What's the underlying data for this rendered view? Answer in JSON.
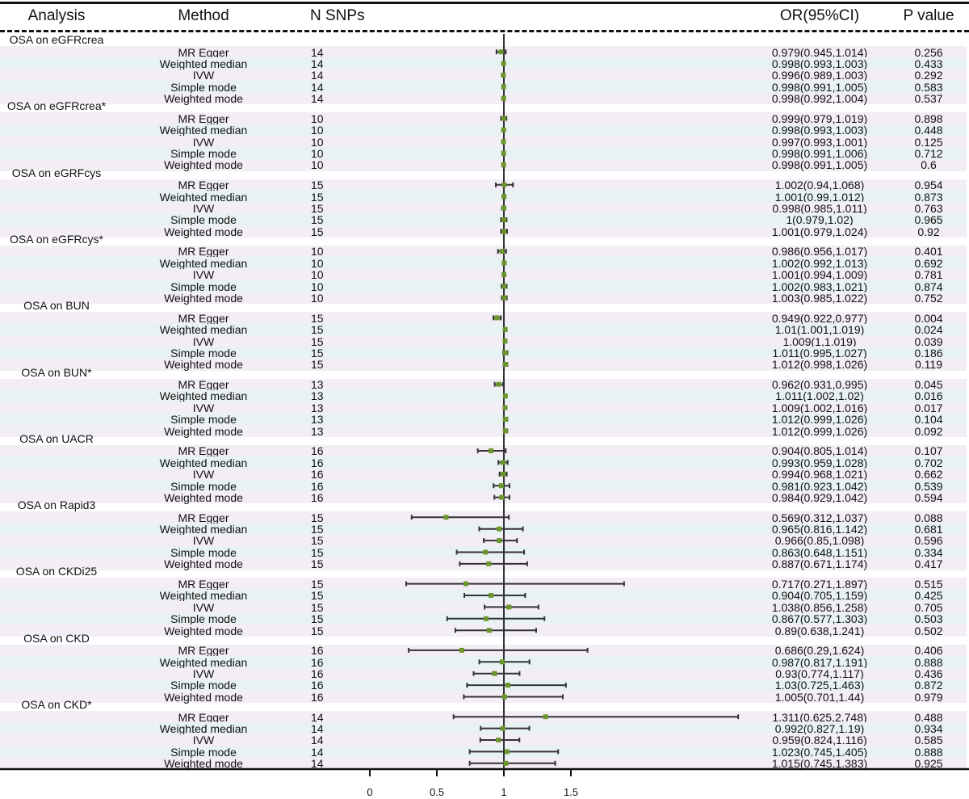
{
  "headers": {
    "analysis": "Analysis",
    "method": "Method",
    "nsnps": "N SNPs",
    "or": "OR(95%CI)",
    "p": "P value"
  },
  "colors": {
    "row_a": "#f3edf5",
    "row_b": "#e8f2f2",
    "point": "#6b962b",
    "line": "#333333"
  },
  "chart_data": {
    "type": "forest",
    "x_ticks": [
      "0",
      "0.5",
      "1",
      "1.5"
    ],
    "xlim": [
      0,
      2.75
    ],
    "reference_line": 1,
    "groups": [
      {
        "analysis": "OSA on eGFRcrea",
        "rows": [
          {
            "method": "MR Egger",
            "n": "14",
            "or": 0.979,
            "lo": 0.945,
            "hi": 1.014,
            "or_text": "0.979(0.945,1.014)",
            "p": "0.256"
          },
          {
            "method": "Weighted median",
            "n": "14",
            "or": 0.998,
            "lo": 0.993,
            "hi": 1.003,
            "or_text": "0.998(0.993,1.003)",
            "p": "0.433"
          },
          {
            "method": "IVW",
            "n": "14",
            "or": 0.996,
            "lo": 0.989,
            "hi": 1.003,
            "or_text": "0.996(0.989,1.003)",
            "p": "0.292"
          },
          {
            "method": "Simple mode",
            "n": "14",
            "or": 0.998,
            "lo": 0.991,
            "hi": 1.005,
            "or_text": "0.998(0.991,1.005)",
            "p": "0.583"
          },
          {
            "method": "Weighted mode",
            "n": "14",
            "or": 0.998,
            "lo": 0.992,
            "hi": 1.004,
            "or_text": "0.998(0.992,1.004)",
            "p": "0.537"
          }
        ]
      },
      {
        "analysis": "OSA on eGFRcrea*",
        "rows": [
          {
            "method": "MR Egger",
            "n": "10",
            "or": 0.999,
            "lo": 0.979,
            "hi": 1.019,
            "or_text": "0.999(0.979,1.019)",
            "p": "0.898"
          },
          {
            "method": "Weighted median",
            "n": "10",
            "or": 0.998,
            "lo": 0.993,
            "hi": 1.003,
            "or_text": "0.998(0.993,1.003)",
            "p": "0.448"
          },
          {
            "method": "IVW",
            "n": "10",
            "or": 0.997,
            "lo": 0.993,
            "hi": 1.001,
            "or_text": "0.997(0.993,1.001)",
            "p": "0.125"
          },
          {
            "method": "Simple mode",
            "n": "10",
            "or": 0.998,
            "lo": 0.991,
            "hi": 1.006,
            "or_text": "0.998(0.991,1.006)",
            "p": "0.712"
          },
          {
            "method": "Weighted mode",
            "n": "10",
            "or": 0.998,
            "lo": 0.991,
            "hi": 1.005,
            "or_text": "0.998(0.991,1.005)",
            "p": "0.6"
          }
        ]
      },
      {
        "analysis": "OSA on eGRFcys",
        "rows": [
          {
            "method": "MR Egger",
            "n": "15",
            "or": 1.002,
            "lo": 0.94,
            "hi": 1.068,
            "or_text": "1.002(0.94,1.068)",
            "p": "0.954"
          },
          {
            "method": "Weighted median",
            "n": "15",
            "or": 1.001,
            "lo": 0.99,
            "hi": 1.012,
            "or_text": "1.001(0.99,1.012)",
            "p": "0.873"
          },
          {
            "method": "IVW",
            "n": "15",
            "or": 0.998,
            "lo": 0.985,
            "hi": 1.011,
            "or_text": "0.998(0.985,1.011)",
            "p": "0.763"
          },
          {
            "method": "Simple mode",
            "n": "15",
            "or": 1,
            "lo": 0.979,
            "hi": 1.02,
            "or_text": "1(0.979,1.02)",
            "p": "0.965"
          },
          {
            "method": "Weighted mode",
            "n": "15",
            "or": 1.001,
            "lo": 0.979,
            "hi": 1.024,
            "or_text": "1.001(0.979,1.024)",
            "p": "0.92"
          }
        ]
      },
      {
        "analysis": "OSA on eGFRcys*",
        "rows": [
          {
            "method": "MR Egger",
            "n": "10",
            "or": 0.986,
            "lo": 0.956,
            "hi": 1.017,
            "or_text": "0.986(0.956,1.017)",
            "p": "0.401"
          },
          {
            "method": "Weighted median",
            "n": "10",
            "or": 1.002,
            "lo": 0.992,
            "hi": 1.013,
            "or_text": "1.002(0.992,1.013)",
            "p": "0.692"
          },
          {
            "method": "IVW",
            "n": "10",
            "or": 1.001,
            "lo": 0.994,
            "hi": 1.009,
            "or_text": "1.001(0.994,1.009)",
            "p": "0.781"
          },
          {
            "method": "Simple mode",
            "n": "10",
            "or": 1.002,
            "lo": 0.983,
            "hi": 1.021,
            "or_text": "1.002(0.983,1.021)",
            "p": "0.874"
          },
          {
            "method": "Weighted mode",
            "n": "10",
            "or": 1.003,
            "lo": 0.985,
            "hi": 1.022,
            "or_text": "1.003(0.985,1.022)",
            "p": "0.752"
          }
        ]
      },
      {
        "analysis": "OSA on BUN",
        "rows": [
          {
            "method": "MR Egger",
            "n": "15",
            "or": 0.949,
            "lo": 0.922,
            "hi": 0.977,
            "or_text": "0.949(0.922,0.977)",
            "p": "0.004"
          },
          {
            "method": "Weighted median",
            "n": "15",
            "or": 1.01,
            "lo": 1.001,
            "hi": 1.019,
            "or_text": "1.01(1.001,1.019)",
            "p": "0.024"
          },
          {
            "method": "IVW",
            "n": "15",
            "or": 1.009,
            "lo": 1,
            "hi": 1.019,
            "or_text": "1.009(1,1.019)",
            "p": "0.039"
          },
          {
            "method": "Simple mode",
            "n": "15",
            "or": 1.011,
            "lo": 0.995,
            "hi": 1.027,
            "or_text": "1.011(0.995,1.027)",
            "p": "0.186"
          },
          {
            "method": "Weighted mode",
            "n": "15",
            "or": 1.012,
            "lo": 0.998,
            "hi": 1.026,
            "or_text": "1.012(0.998,1.026)",
            "p": "0.119"
          }
        ]
      },
      {
        "analysis": "OSA on BUN*",
        "rows": [
          {
            "method": "MR Egger",
            "n": "13",
            "or": 0.962,
            "lo": 0.931,
            "hi": 0.995,
            "or_text": "0.962(0.931,0.995)",
            "p": "0.045"
          },
          {
            "method": "Weighted median",
            "n": "13",
            "or": 1.011,
            "lo": 1.002,
            "hi": 1.02,
            "or_text": "1.011(1.002,1.02)",
            "p": "0.016"
          },
          {
            "method": "IVW",
            "n": "13",
            "or": 1.009,
            "lo": 1.002,
            "hi": 1.016,
            "or_text": "1.009(1.002,1.016)",
            "p": "0.017"
          },
          {
            "method": "Simple mode",
            "n": "13",
            "or": 1.012,
            "lo": 0.999,
            "hi": 1.026,
            "or_text": "1.012(0.999,1.026)",
            "p": "0.104"
          },
          {
            "method": "Weighted mode",
            "n": "13",
            "or": 1.012,
            "lo": 0.999,
            "hi": 1.026,
            "or_text": "1.012(0.999,1.026)",
            "p": "0.092"
          }
        ]
      },
      {
        "analysis": "OSA on UACR",
        "rows": [
          {
            "method": "MR Egger",
            "n": "16",
            "or": 0.904,
            "lo": 0.805,
            "hi": 1.014,
            "or_text": "0.904(0.805,1.014)",
            "p": "0.107"
          },
          {
            "method": "Weighted median",
            "n": "16",
            "or": 0.993,
            "lo": 0.959,
            "hi": 1.028,
            "or_text": "0.993(0.959,1.028)",
            "p": "0.702"
          },
          {
            "method": "IVW",
            "n": "16",
            "or": 0.994,
            "lo": 0.968,
            "hi": 1.021,
            "or_text": "0.994(0.968,1.021)",
            "p": "0.662"
          },
          {
            "method": "Simple mode",
            "n": "16",
            "or": 0.981,
            "lo": 0.923,
            "hi": 1.042,
            "or_text": "0.981(0.923,1.042)",
            "p": "0.539"
          },
          {
            "method": "Weighted mode",
            "n": "16",
            "or": 0.984,
            "lo": 0.929,
            "hi": 1.042,
            "or_text": "0.984(0.929,1.042)",
            "p": "0.594"
          }
        ]
      },
      {
        "analysis": "OSA on Rapid3",
        "rows": [
          {
            "method": "MR Egger",
            "n": "15",
            "or": 0.569,
            "lo": 0.312,
            "hi": 1.037,
            "or_text": "0.569(0.312,1.037)",
            "p": "0.088"
          },
          {
            "method": "Weighted median",
            "n": "15",
            "or": 0.965,
            "lo": 0.816,
            "hi": 1.142,
            "or_text": "0.965(0.816,1.142)",
            "p": "0.681"
          },
          {
            "method": "IVW",
            "n": "15",
            "or": 0.966,
            "lo": 0.85,
            "hi": 1.098,
            "or_text": "0.966(0.85,1.098)",
            "p": "0.596"
          },
          {
            "method": "Simple mode",
            "n": "15",
            "or": 0.863,
            "lo": 0.648,
            "hi": 1.151,
            "or_text": "0.863(0.648,1.151)",
            "p": "0.334"
          },
          {
            "method": "Weighted mode",
            "n": "15",
            "or": 0.887,
            "lo": 0.671,
            "hi": 1.174,
            "or_text": "0.887(0.671,1.174)",
            "p": "0.417"
          }
        ]
      },
      {
        "analysis": "OSA on CKDi25",
        "rows": [
          {
            "method": "MR Egger",
            "n": "15",
            "or": 0.717,
            "lo": 0.271,
            "hi": 1.897,
            "or_text": "0.717(0.271,1.897)",
            "p": "0.515"
          },
          {
            "method": "Weighted median",
            "n": "15",
            "or": 0.904,
            "lo": 0.705,
            "hi": 1.159,
            "or_text": "0.904(0.705,1.159)",
            "p": "0.425"
          },
          {
            "method": "IVW",
            "n": "15",
            "or": 1.038,
            "lo": 0.856,
            "hi": 1.258,
            "or_text": "1.038(0.856,1.258)",
            "p": "0.705"
          },
          {
            "method": "Simple mode",
            "n": "15",
            "or": 0.867,
            "lo": 0.577,
            "hi": 1.303,
            "or_text": "0.867(0.577,1.303)",
            "p": "0.503"
          },
          {
            "method": "Weighted mode",
            "n": "15",
            "or": 0.89,
            "lo": 0.638,
            "hi": 1.241,
            "or_text": "0.89(0.638,1.241)",
            "p": "0.502"
          }
        ]
      },
      {
        "analysis": "OSA on CKD",
        "rows": [
          {
            "method": "MR Egger",
            "n": "16",
            "or": 0.686,
            "lo": 0.29,
            "hi": 1.624,
            "or_text": "0.686(0.29,1.624)",
            "p": "0.406"
          },
          {
            "method": "Weighted median",
            "n": "16",
            "or": 0.987,
            "lo": 0.817,
            "hi": 1.191,
            "or_text": "0.987(0.817,1.191)",
            "p": "0.888"
          },
          {
            "method": "IVW",
            "n": "16",
            "or": 0.93,
            "lo": 0.774,
            "hi": 1.117,
            "or_text": "0.93(0.774,1.117)",
            "p": "0.436"
          },
          {
            "method": "Simple mode",
            "n": "16",
            "or": 1.03,
            "lo": 0.725,
            "hi": 1.463,
            "or_text": "1.03(0.725,1.463)",
            "p": "0.872"
          },
          {
            "method": "Weighted mode",
            "n": "16",
            "or": 1.005,
            "lo": 0.701,
            "hi": 1.44,
            "or_text": "1.005(0.701,1.44)",
            "p": "0.979"
          }
        ]
      },
      {
        "analysis": "OSA on CKD*",
        "rows": [
          {
            "method": "MR Egger",
            "n": "14",
            "or": 1.311,
            "lo": 0.625,
            "hi": 2.748,
            "or_text": "1.311(0.625,2.748)",
            "p": "0.488"
          },
          {
            "method": "Weighted median",
            "n": "14",
            "or": 0.992,
            "lo": 0.827,
            "hi": 1.19,
            "or_text": "0.992(0.827,1.19)",
            "p": "0.934"
          },
          {
            "method": "IVW",
            "n": "14",
            "or": 0.959,
            "lo": 0.824,
            "hi": 1.116,
            "or_text": "0.959(0.824,1.116)",
            "p": "0.585"
          },
          {
            "method": "Simple mode",
            "n": "14",
            "or": 1.023,
            "lo": 0.745,
            "hi": 1.405,
            "or_text": "1.023(0.745,1.405)",
            "p": "0.888"
          },
          {
            "method": "Weighted mode",
            "n": "14",
            "or": 1.015,
            "lo": 0.745,
            "hi": 1.383,
            "or_text": "1.015(0.745,1.383)",
            "p": "0.925"
          }
        ]
      }
    ]
  }
}
